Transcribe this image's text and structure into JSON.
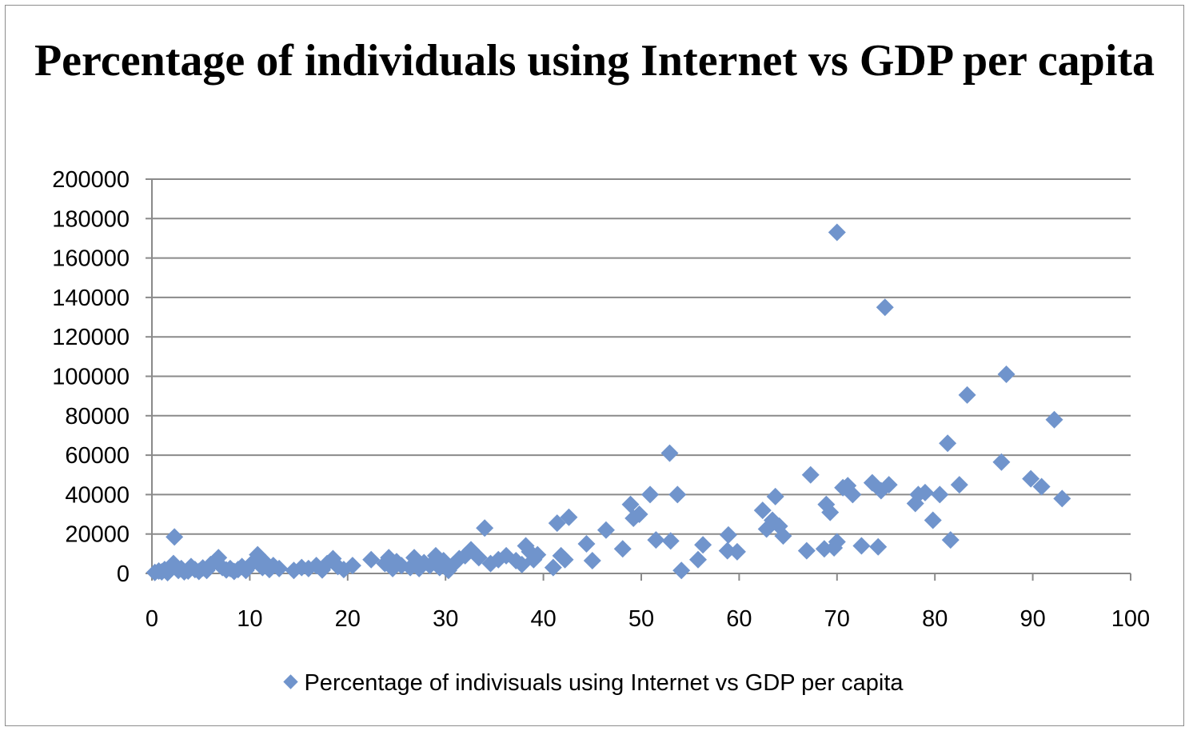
{
  "chart_data": {
    "type": "scatter",
    "title": "Percentage of individuals using Internet vs GDP per capita",
    "xlabel": "",
    "ylabel": "",
    "xlim": [
      0,
      100
    ],
    "ylim": [
      0,
      200000
    ],
    "x_ticks": [
      0,
      10,
      20,
      30,
      40,
      50,
      60,
      70,
      80,
      90,
      100
    ],
    "y_ticks": [
      0,
      20000,
      40000,
      60000,
      80000,
      100000,
      120000,
      140000,
      160000,
      180000,
      200000
    ],
    "grid": true,
    "legend_position": "bottom",
    "marker": "diamond",
    "color": "#7094cc",
    "series": [
      {
        "name": "Percentage of indivisuals using Internet vs GDP per capita",
        "points": [
          [
            0.3,
            500
          ],
          [
            0.7,
            1200
          ],
          [
            1.0,
            800
          ],
          [
            1.3,
            2000
          ],
          [
            1.6,
            400
          ],
          [
            2.0,
            3000
          ],
          [
            2.2,
            5000
          ],
          [
            2.3,
            18500
          ],
          [
            2.7,
            1500
          ],
          [
            3.0,
            2500
          ],
          [
            3.3,
            800
          ],
          [
            3.7,
            1200
          ],
          [
            4.0,
            3500
          ],
          [
            4.4,
            2000
          ],
          [
            4.8,
            1000
          ],
          [
            5.2,
            2800
          ],
          [
            5.6,
            1500
          ],
          [
            6.0,
            4500
          ],
          [
            6.4,
            6000
          ],
          [
            6.8,
            8000
          ],
          [
            7.2,
            3000
          ],
          [
            7.6,
            1800
          ],
          [
            8.0,
            2500
          ],
          [
            8.4,
            1000
          ],
          [
            8.8,
            2000
          ],
          [
            9.2,
            3500
          ],
          [
            9.6,
            1500
          ],
          [
            10.0,
            4000
          ],
          [
            10.4,
            6000
          ],
          [
            10.8,
            9500
          ],
          [
            11.0,
            7000
          ],
          [
            11.3,
            3000
          ],
          [
            11.6,
            5500
          ],
          [
            12.0,
            2000
          ],
          [
            12.4,
            4000
          ],
          [
            13.0,
            2500
          ],
          [
            14.5,
            1500
          ],
          [
            15.3,
            3000
          ],
          [
            16.0,
            2500
          ],
          [
            16.8,
            4000
          ],
          [
            17.4,
            1800
          ],
          [
            17.9,
            5000
          ],
          [
            18.5,
            7500
          ],
          [
            19.0,
            3500
          ],
          [
            19.6,
            2000
          ],
          [
            20.5,
            4000
          ],
          [
            22.4,
            7000
          ],
          [
            23.8,
            5000
          ],
          [
            24.2,
            8000
          ],
          [
            24.6,
            2500
          ],
          [
            25.0,
            6000
          ],
          [
            25.5,
            4000
          ],
          [
            26.4,
            3000
          ],
          [
            26.8,
            8000
          ],
          [
            27.3,
            2500
          ],
          [
            27.8,
            5500
          ],
          [
            28.4,
            4000
          ],
          [
            29.0,
            9000
          ],
          [
            29.4,
            3000
          ],
          [
            29.8,
            6500
          ],
          [
            30.3,
            1500
          ],
          [
            30.8,
            4500
          ],
          [
            31.4,
            7500
          ],
          [
            32.0,
            9000
          ],
          [
            32.6,
            12000
          ],
          [
            33.4,
            8000
          ],
          [
            34.0,
            23000
          ],
          [
            34.6,
            5000
          ],
          [
            35.4,
            7000
          ],
          [
            36.2,
            9000
          ],
          [
            37.2,
            6500
          ],
          [
            37.8,
            4500
          ],
          [
            38.2,
            14000
          ],
          [
            38.6,
            11000
          ],
          [
            39.0,
            7000
          ],
          [
            39.4,
            9500
          ],
          [
            41.0,
            3000
          ],
          [
            41.4,
            25500
          ],
          [
            41.8,
            9000
          ],
          [
            42.2,
            7000
          ],
          [
            42.6,
            28500
          ],
          [
            44.4,
            15000
          ],
          [
            45.0,
            6500
          ],
          [
            46.4,
            22000
          ],
          [
            48.1,
            12500
          ],
          [
            48.9,
            35000
          ],
          [
            49.2,
            28000
          ],
          [
            49.8,
            30000
          ],
          [
            50.9,
            40000
          ],
          [
            51.5,
            17000
          ],
          [
            52.9,
            61000
          ],
          [
            53.0,
            16500
          ],
          [
            53.7,
            40000
          ],
          [
            54.1,
            1500
          ],
          [
            55.8,
            7000
          ],
          [
            56.3,
            14500
          ],
          [
            58.8,
            11500
          ],
          [
            58.9,
            19500
          ],
          [
            59.8,
            11000
          ],
          [
            62.4,
            32000
          ],
          [
            62.8,
            22500
          ],
          [
            63.4,
            27000
          ],
          [
            63.7,
            39000
          ],
          [
            64.1,
            24000
          ],
          [
            64.5,
            19000
          ],
          [
            66.9,
            11500
          ],
          [
            67.3,
            50000
          ],
          [
            68.7,
            12500
          ],
          [
            68.9,
            35000
          ],
          [
            69.3,
            31000
          ],
          [
            69.7,
            13000
          ],
          [
            70.0,
            16000
          ],
          [
            70.0,
            173000
          ],
          [
            70.6,
            43500
          ],
          [
            71.1,
            44500
          ],
          [
            71.6,
            40000
          ],
          [
            72.5,
            14000
          ],
          [
            73.6,
            46000
          ],
          [
            74.2,
            13500
          ],
          [
            74.5,
            42000
          ],
          [
            74.9,
            135000
          ],
          [
            75.3,
            45000
          ],
          [
            78.0,
            35500
          ],
          [
            78.3,
            40000
          ],
          [
            79.0,
            41000
          ],
          [
            79.8,
            27000
          ],
          [
            80.5,
            40000
          ],
          [
            81.3,
            66000
          ],
          [
            81.6,
            17000
          ],
          [
            82.5,
            45000
          ],
          [
            83.3,
            90500
          ],
          [
            86.8,
            56500
          ],
          [
            87.3,
            101000
          ],
          [
            89.8,
            48000
          ],
          [
            90.9,
            44000
          ],
          [
            92.2,
            78000
          ],
          [
            93.0,
            38000
          ]
        ]
      }
    ]
  }
}
